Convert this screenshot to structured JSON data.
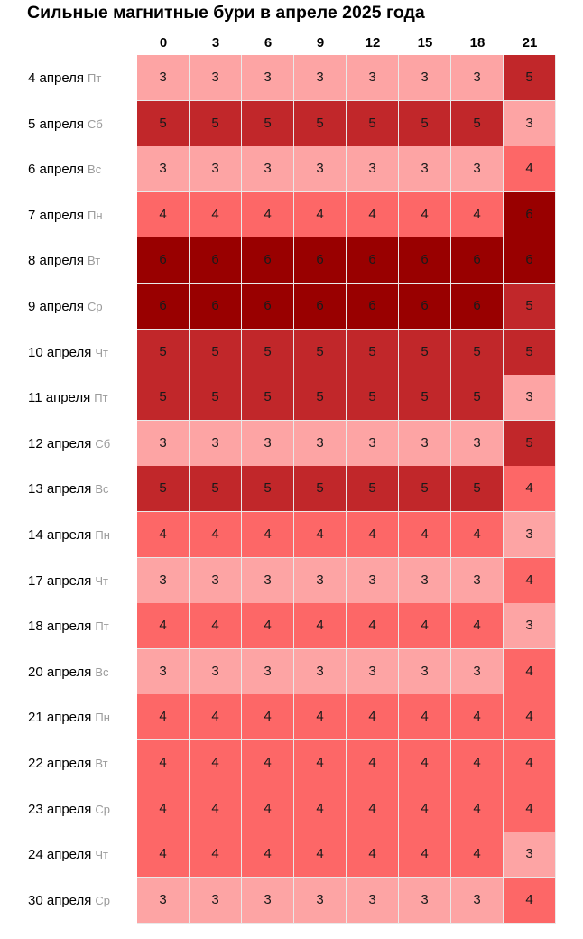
{
  "title": "Сильные магнитные бури в апреле 2025 года",
  "colors": {
    "3": "#fda4a4",
    "4": "#fd6767",
    "5": "#c1272a",
    "6": "#990000"
  },
  "chart_data": {
    "type": "heatmap",
    "title": "Сильные магнитные бури в апреле 2025 года",
    "columns": [
      "0",
      "3",
      "6",
      "9",
      "12",
      "15",
      "18",
      "21"
    ],
    "rows": [
      {
        "date": "4 апреля",
        "dow": "Пт",
        "values": [
          3,
          3,
          3,
          3,
          3,
          3,
          3,
          5
        ]
      },
      {
        "date": "5 апреля",
        "dow": "Сб",
        "values": [
          5,
          5,
          5,
          5,
          5,
          5,
          5,
          3
        ]
      },
      {
        "date": "6 апреля",
        "dow": "Вс",
        "values": [
          3,
          3,
          3,
          3,
          3,
          3,
          3,
          4
        ]
      },
      {
        "date": "7 апреля",
        "dow": "Пн",
        "values": [
          4,
          4,
          4,
          4,
          4,
          4,
          4,
          6
        ]
      },
      {
        "date": "8 апреля",
        "dow": "Вт",
        "values": [
          6,
          6,
          6,
          6,
          6,
          6,
          6,
          6
        ]
      },
      {
        "date": "9 апреля",
        "dow": "Ср",
        "values": [
          6,
          6,
          6,
          6,
          6,
          6,
          6,
          5
        ]
      },
      {
        "date": "10 апреля",
        "dow": "Чт",
        "values": [
          5,
          5,
          5,
          5,
          5,
          5,
          5,
          5
        ]
      },
      {
        "date": "11 апреля",
        "dow": "Пт",
        "values": [
          5,
          5,
          5,
          5,
          5,
          5,
          5,
          3
        ]
      },
      {
        "date": "12 апреля",
        "dow": "Сб",
        "values": [
          3,
          3,
          3,
          3,
          3,
          3,
          3,
          5
        ]
      },
      {
        "date": "13 апреля",
        "dow": "Вс",
        "values": [
          5,
          5,
          5,
          5,
          5,
          5,
          5,
          4
        ]
      },
      {
        "date": "14 апреля",
        "dow": "Пн",
        "values": [
          4,
          4,
          4,
          4,
          4,
          4,
          4,
          3
        ]
      },
      {
        "date": "17 апреля",
        "dow": "Чт",
        "values": [
          3,
          3,
          3,
          3,
          3,
          3,
          3,
          4
        ]
      },
      {
        "date": "18 апреля",
        "dow": "Пт",
        "values": [
          4,
          4,
          4,
          4,
          4,
          4,
          4,
          3
        ]
      },
      {
        "date": "20 апреля",
        "dow": "Вс",
        "values": [
          3,
          3,
          3,
          3,
          3,
          3,
          3,
          4
        ]
      },
      {
        "date": "21 апреля",
        "dow": "Пн",
        "values": [
          4,
          4,
          4,
          4,
          4,
          4,
          4,
          4
        ]
      },
      {
        "date": "22 апреля",
        "dow": "Вт",
        "values": [
          4,
          4,
          4,
          4,
          4,
          4,
          4,
          4
        ]
      },
      {
        "date": "23 апреля",
        "dow": "Ср",
        "values": [
          4,
          4,
          4,
          4,
          4,
          4,
          4,
          4
        ]
      },
      {
        "date": "24 апреля",
        "dow": "Чт",
        "values": [
          4,
          4,
          4,
          4,
          4,
          4,
          4,
          3
        ]
      },
      {
        "date": "30 апреля",
        "dow": "Ср",
        "values": [
          3,
          3,
          3,
          3,
          3,
          3,
          3,
          4
        ]
      }
    ]
  }
}
